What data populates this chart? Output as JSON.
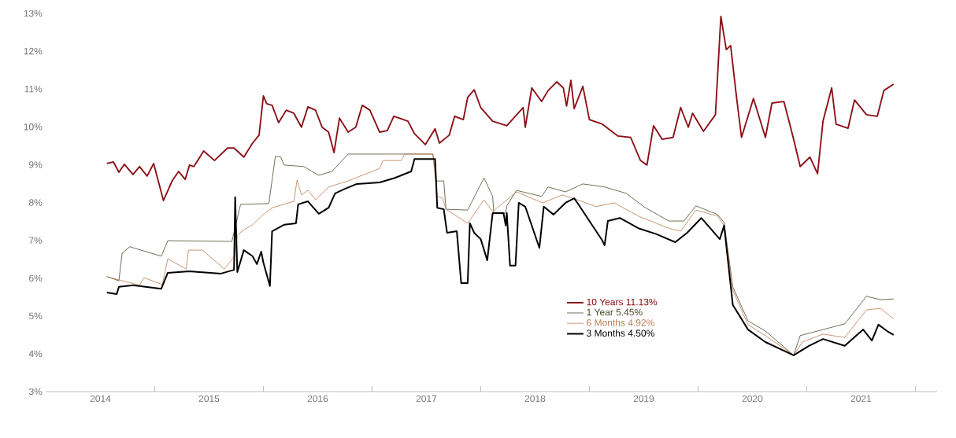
{
  "chart_data": {
    "type": "line",
    "xlim": [
      2014,
      2022.2
    ],
    "xticks": [
      {
        "value": 2014.5,
        "label": "2014"
      },
      {
        "value": 2015.5,
        "label": "2015"
      },
      {
        "value": 2016.5,
        "label": "2016"
      },
      {
        "value": 2017.5,
        "label": "2017"
      },
      {
        "value": 2018.5,
        "label": "2018"
      },
      {
        "value": 2019.5,
        "label": "2019"
      },
      {
        "value": 2020.5,
        "label": "2020"
      },
      {
        "value": 2021.5,
        "label": "2021"
      },
      {
        "value": 2015,
        "label": null
      },
      {
        "value": 2016,
        "label": null
      },
      {
        "value": 2017,
        "label": null
      },
      {
        "value": 2018,
        "label": null
      },
      {
        "value": 2019,
        "label": null
      },
      {
        "value": 2020,
        "label": null
      },
      {
        "value": 2021,
        "label": null
      },
      {
        "value": 2022,
        "label": null
      }
    ],
    "ylim": [
      3,
      13
    ],
    "yticks": [
      {
        "value": 3,
        "label": "3%"
      },
      {
        "value": 4,
        "label": "4%"
      },
      {
        "value": 5,
        "label": "5%"
      },
      {
        "value": 6,
        "label": "6%"
      },
      {
        "value": 7,
        "label": "7%"
      },
      {
        "value": 8,
        "label": "8%"
      },
      {
        "value": 9,
        "label": "9%"
      },
      {
        "value": 10,
        "label": "10%"
      },
      {
        "value": 11,
        "label": "11%"
      },
      {
        "value": 12,
        "label": "12%"
      },
      {
        "value": 13,
        "label": "13%"
      }
    ],
    "grid": false,
    "legend": "bottom",
    "marker": "none",
    "line_style": "solid",
    "series": [
      {
        "name": "10 Years 11.13%",
        "color": "#8b1016",
        "x": [
          2014.56,
          2014.62,
          2014.67,
          2014.72,
          2014.8,
          2014.86,
          2014.93,
          2014.99,
          2015.08,
          2015.16,
          2015.22,
          2015.28,
          2015.32,
          2015.36,
          2015.45,
          2015.55,
          2015.67,
          2015.73,
          2015.82,
          2015.9,
          2015.96,
          2016.0,
          2016.03,
          2016.08,
          2016.14,
          2016.21,
          2016.28,
          2016.35,
          2016.41,
          2016.48,
          2016.54,
          2016.6,
          2016.65,
          2016.7,
          2016.78,
          2016.85,
          2016.91,
          2016.98,
          2017.07,
          2017.14,
          2017.2,
          2017.33,
          2017.39,
          2017.49,
          2017.58,
          2017.62,
          2017.71,
          2017.76,
          2017.84,
          2017.88,
          2017.94,
          2018.0,
          2018.11,
          2018.24,
          2018.39,
          2018.41,
          2018.47,
          2018.56,
          2018.62,
          2018.7,
          2018.76,
          2018.79,
          2018.83,
          2018.86,
          2018.94,
          2019.0,
          2019.12,
          2019.26,
          2019.38,
          2019.47,
          2019.53,
          2019.59,
          2019.67,
          2019.77,
          2019.84,
          2019.91,
          2019.95,
          2020.05,
          2020.16,
          2020.21,
          2020.26,
          2020.3,
          2020.35,
          2020.4,
          2020.51,
          2020.62,
          2020.68,
          2020.79,
          2020.88,
          2020.94,
          2021.03,
          2021.1,
          2021.15,
          2021.23,
          2021.27,
          2021.38,
          2021.44,
          2021.55,
          2021.65,
          2021.71,
          2021.8
        ],
        "values": [
          9.03,
          9.07,
          8.8,
          9.01,
          8.74,
          8.95,
          8.7,
          9.03,
          8.05,
          8.57,
          8.82,
          8.61,
          8.99,
          8.95,
          9.36,
          9.11,
          9.44,
          9.44,
          9.2,
          9.57,
          9.78,
          10.82,
          10.61,
          10.57,
          10.11,
          10.44,
          10.36,
          9.99,
          10.53,
          10.44,
          9.99,
          9.86,
          9.32,
          10.23,
          9.86,
          9.99,
          10.57,
          10.44,
          9.86,
          9.9,
          10.28,
          10.15,
          9.82,
          9.53,
          9.95,
          9.57,
          9.78,
          10.28,
          10.19,
          10.78,
          10.98,
          10.51,
          10.15,
          10.03,
          10.51,
          9.99,
          11.03,
          10.67,
          10.96,
          11.19,
          11.03,
          10.55,
          11.23,
          10.48,
          11.07,
          10.19,
          10.07,
          9.76,
          9.72,
          9.11,
          8.99,
          10.03,
          9.67,
          9.72,
          10.51,
          9.99,
          10.36,
          9.88,
          10.32,
          12.92,
          12.04,
          12.15,
          10.88,
          9.72,
          10.75,
          9.72,
          10.63,
          10.67,
          9.67,
          8.95,
          9.2,
          8.76,
          10.15,
          11.03,
          10.07,
          9.96,
          10.71,
          10.32,
          10.28,
          10.96,
          11.13
        ]
      },
      {
        "name": "1 Year 5.45%",
        "color": "#4b4b2c",
        "x": [
          2014.56,
          2014.67,
          2014.7,
          2014.77,
          2015.06,
          2015.12,
          2015.71,
          2015.79,
          2016.05,
          2016.11,
          2016.16,
          2016.19,
          2016.37,
          2016.51,
          2016.63,
          2016.78,
          2017.56,
          2017.59,
          2017.66,
          2017.68,
          2017.88,
          2018.03,
          2018.11,
          2018.12,
          2018.23,
          2018.24,
          2018.33,
          2018.56,
          2018.62,
          2018.78,
          2018.94,
          2019.14,
          2019.34,
          2019.5,
          2019.73,
          2019.87,
          2019.98,
          2020.18,
          2020.24,
          2020.32,
          2020.46,
          2020.62,
          2020.88,
          2020.94,
          2021.15,
          2021.35,
          2021.55,
          2021.68,
          2021.8
        ],
        "values": [
          6.04,
          5.93,
          6.66,
          6.83,
          6.58,
          6.99,
          6.97,
          7.95,
          7.97,
          9.22,
          9.2,
          8.99,
          8.95,
          8.72,
          8.82,
          9.28,
          9.28,
          8.57,
          8.57,
          7.82,
          7.8,
          8.65,
          8.16,
          7.72,
          7.72,
          7.91,
          8.32,
          8.16,
          8.41,
          8.28,
          8.49,
          8.41,
          8.24,
          7.89,
          7.51,
          7.51,
          7.91,
          7.68,
          7.47,
          5.77,
          4.87,
          4.6,
          3.96,
          4.48,
          4.64,
          4.79,
          5.52,
          5.43,
          5.45
        ]
      },
      {
        "name": "6 Months 4.92%",
        "color": "#c07a52",
        "x": [
          2014.56,
          2014.86,
          2014.9,
          2015.07,
          2015.12,
          2015.29,
          2015.31,
          2015.44,
          2015.64,
          2015.73,
          2015.76,
          2015.8,
          2015.9,
          2015.99,
          2016.08,
          2016.28,
          2016.31,
          2016.35,
          2016.41,
          2016.48,
          2016.6,
          2016.78,
          2017.07,
          2017.1,
          2017.27,
          2017.3,
          2017.56,
          2017.6,
          2017.65,
          2017.68,
          2017.88,
          2018.03,
          2018.11,
          2018.33,
          2018.57,
          2018.75,
          2018.89,
          2019.06,
          2019.23,
          2019.45,
          2019.73,
          2019.84,
          2019.98,
          2020.18,
          2020.24,
          2020.32,
          2020.46,
          2020.62,
          2020.88,
          2020.96,
          2021.15,
          2021.35,
          2021.55,
          2021.68,
          2021.8
        ],
        "values": [
          6.04,
          5.81,
          6.01,
          5.83,
          6.51,
          6.24,
          6.74,
          6.74,
          6.24,
          6.56,
          7.12,
          7.24,
          7.41,
          7.66,
          7.86,
          8.03,
          8.59,
          8.2,
          8.32,
          8.07,
          8.41,
          8.57,
          8.9,
          9.11,
          9.11,
          9.28,
          9.28,
          8.16,
          8.11,
          7.82,
          7.45,
          8.07,
          7.76,
          8.28,
          7.99,
          8.2,
          8.07,
          7.89,
          7.99,
          7.64,
          7.32,
          7.24,
          7.8,
          7.64,
          7.39,
          5.68,
          4.77,
          4.48,
          3.96,
          4.31,
          4.52,
          4.43,
          5.16,
          5.2,
          4.92
        ]
      },
      {
        "name": "3 Months 4.50%",
        "color": "#000000",
        "x": [
          2014.56,
          2014.65,
          2014.67,
          2014.8,
          2015.06,
          2015.12,
          2015.32,
          2015.61,
          2015.73,
          2015.74,
          2015.76,
          2015.82,
          2015.9,
          2015.94,
          2015.98,
          2016.0,
          2016.06,
          2016.08,
          2016.19,
          2016.3,
          2016.32,
          2016.41,
          2016.51,
          2016.6,
          2016.66,
          2016.75,
          2016.86,
          2017.07,
          2017.21,
          2017.36,
          2017.39,
          2017.58,
          2017.6,
          2017.66,
          2017.69,
          2017.78,
          2017.82,
          2017.88,
          2017.9,
          2017.94,
          2018.0,
          2018.06,
          2018.11,
          2018.21,
          2018.23,
          2018.24,
          2018.27,
          2018.32,
          2018.35,
          2018.41,
          2018.54,
          2018.58,
          2018.67,
          2018.78,
          2018.86,
          2018.89,
          2019.12,
          2019.14,
          2019.17,
          2019.28,
          2019.45,
          2019.62,
          2019.79,
          2019.9,
          2020.03,
          2020.2,
          2020.24,
          2020.32,
          2020.46,
          2020.62,
          2020.88,
          2021.02,
          2021.15,
          2021.35,
          2021.52,
          2021.6,
          2021.66,
          2021.74,
          2021.8
        ],
        "values": [
          5.62,
          5.58,
          5.77,
          5.81,
          5.72,
          6.14,
          6.18,
          6.12,
          6.22,
          8.14,
          6.16,
          6.74,
          6.58,
          6.37,
          6.7,
          6.41,
          5.79,
          7.24,
          7.41,
          7.45,
          7.95,
          8.03,
          7.7,
          7.86,
          8.24,
          8.36,
          8.49,
          8.53,
          8.65,
          8.82,
          9.15,
          9.15,
          7.86,
          7.82,
          7.2,
          7.24,
          5.87,
          5.87,
          7.45,
          7.2,
          7.03,
          6.47,
          7.72,
          7.72,
          7.39,
          7.72,
          6.33,
          6.33,
          7.99,
          7.89,
          6.8,
          7.89,
          7.68,
          7.99,
          8.11,
          7.99,
          6.99,
          6.87,
          7.51,
          7.59,
          7.32,
          7.16,
          6.95,
          7.2,
          7.59,
          7.03,
          7.39,
          5.29,
          4.64,
          4.31,
          3.96,
          4.21,
          4.39,
          4.21,
          4.64,
          4.35,
          4.77,
          4.6,
          4.5
        ]
      }
    ]
  }
}
